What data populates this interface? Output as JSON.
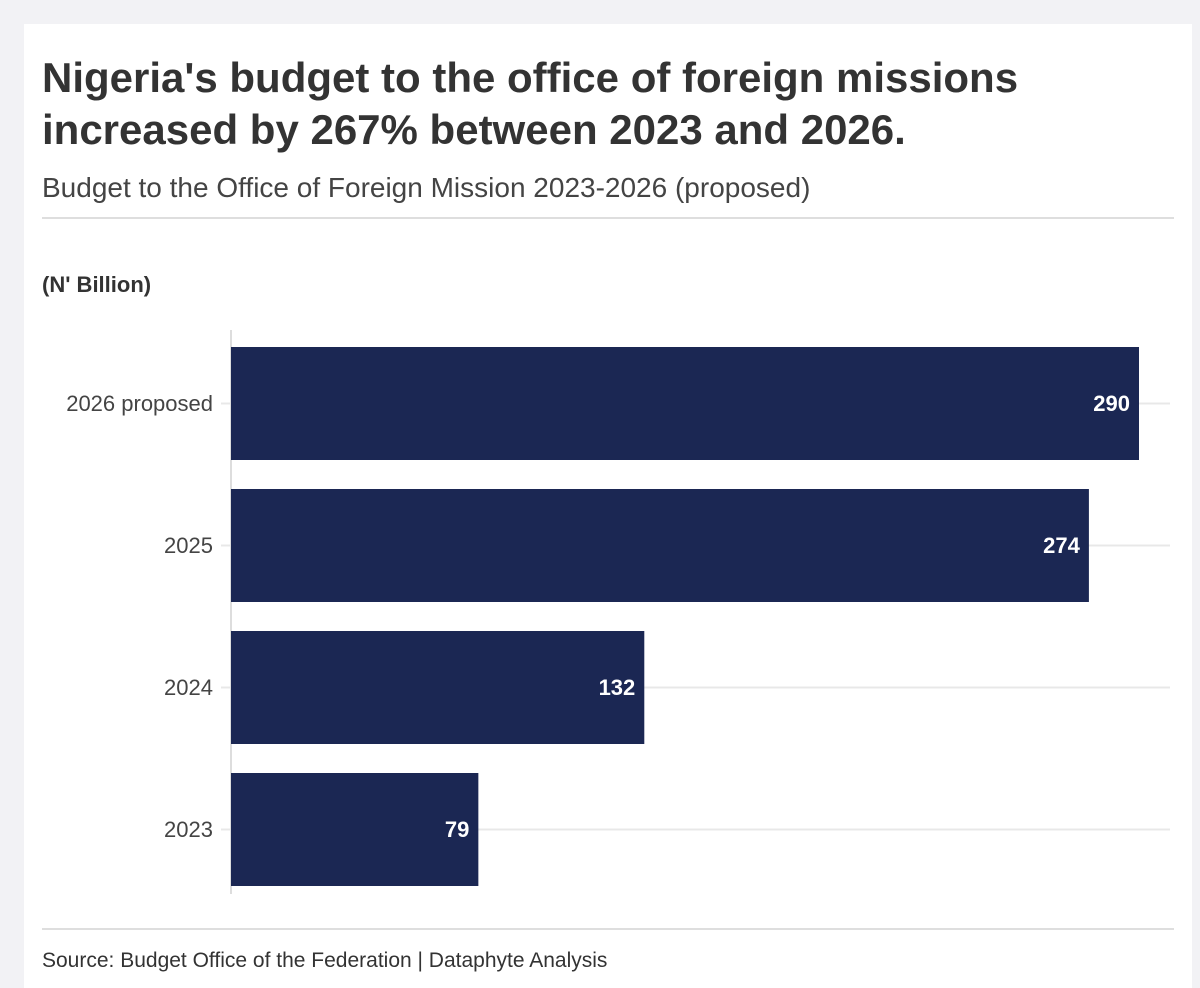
{
  "colors": {
    "bar": "#1b2753",
    "bar_label": "#ffffff",
    "gridline": "#e8e8e8",
    "axis": "#dddddd",
    "text": "#333333",
    "tick_text": "#444444"
  },
  "footer": {
    "source": "Source: Budget Office of the Federation | Dataphyte Analysis"
  },
  "chart_data": {
    "type": "bar",
    "orientation": "horizontal",
    "title": "Nigeria's budget to the office of foreign missions increased by 267% between 2023 and 2026.",
    "subtitle": "Budget to the Office of Foreign Mission 2023-2026 (proposed)",
    "unit_label": "(N' Billion)",
    "xlabel": "",
    "ylabel": "",
    "categories": [
      "2026 proposed",
      "2025",
      "2024",
      "2023"
    ],
    "values": [
      290,
      274,
      132,
      79
    ],
    "xlim": [
      0,
      290
    ],
    "grid": true,
    "legend": "none"
  }
}
